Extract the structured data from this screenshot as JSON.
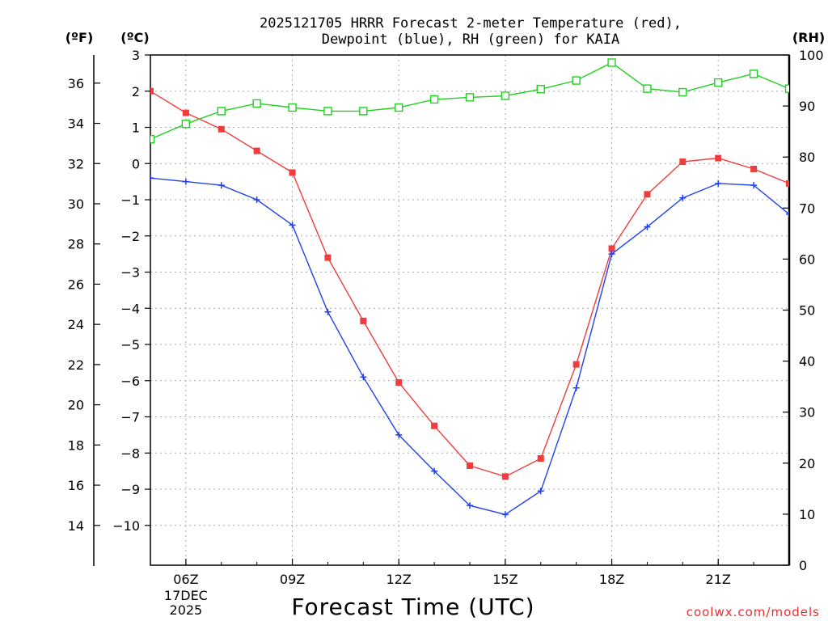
{
  "chart_data": {
    "type": "line",
    "title_line1": "2025121705 HRRR Forecast 2-meter Temperature (red),",
    "title_line2": "Dewpoint (blue), RH (green) for KAIA",
    "xlabel": "Forecast Time (UTC)",
    "credit": "coolwx.com/models",
    "x_hours": [
      5,
      6,
      7,
      8,
      9,
      10,
      11,
      12,
      13,
      14,
      15,
      16,
      17,
      18,
      19,
      20,
      21,
      22,
      23
    ],
    "x_ticks": [
      {
        "hour": 6,
        "label": "06Z",
        "date_line1": "17DEC",
        "date_line2": "2025"
      },
      {
        "hour": 9,
        "label": "09Z"
      },
      {
        "hour": 12,
        "label": "12Z"
      },
      {
        "hour": 15,
        "label": "15Z"
      },
      {
        "hour": 18,
        "label": "18Z"
      },
      {
        "hour": 21,
        "label": "21Z"
      }
    ],
    "xlim": [
      5,
      23
    ],
    "celsius_axis": {
      "label": "(ºC)",
      "ylim": [
        -11.1,
        3
      ],
      "ticks": [
        3,
        2,
        1,
        0,
        -1,
        -2,
        -3,
        -4,
        -5,
        -6,
        -7,
        -8,
        -9,
        -10
      ],
      "tick_labels": [
        "3",
        "2",
        "1",
        "0",
        "−1",
        "−2",
        "−3",
        "−4",
        "−5",
        "−6",
        "−7",
        "−8",
        "−9",
        "−10"
      ]
    },
    "fahrenheit_axis": {
      "label": "(ºF)",
      "ticks": [
        36,
        34,
        32,
        30,
        28,
        26,
        24,
        22,
        20,
        18,
        16,
        14
      ],
      "tick_labels": [
        "36",
        "34",
        "32",
        "30",
        "28",
        "26",
        "24",
        "22",
        "20",
        "18",
        "16",
        "14"
      ]
    },
    "rh_axis": {
      "label": "(RH)",
      "ylim": [
        0,
        100
      ],
      "ticks": [
        100,
        90,
        80,
        70,
        60,
        50,
        40,
        30,
        20,
        10,
        0
      ],
      "tick_labels": [
        "100",
        "90",
        "80",
        "70",
        "60",
        "50",
        "40",
        "30",
        "20",
        "10",
        "0"
      ]
    },
    "series": [
      {
        "name": "Temperature",
        "axis": "celsius",
        "color": "#f03c3c",
        "marker": "filled-square",
        "values": [
          2.0,
          1.4,
          0.95,
          0.35,
          -0.25,
          -2.6,
          -4.35,
          -6.05,
          -7.25,
          -8.35,
          -8.65,
          -8.15,
          -5.55,
          -2.35,
          -0.85,
          0.05,
          0.15,
          -0.15,
          -0.55
        ]
      },
      {
        "name": "Dewpoint",
        "axis": "celsius",
        "color": "#2040f0",
        "marker": "plus",
        "values": [
          -0.4,
          -0.5,
          -0.6,
          -1.0,
          -1.7,
          -4.1,
          -5.9,
          -7.5,
          -8.5,
          -9.45,
          -9.7,
          -9.05,
          -6.2,
          -2.5,
          -1.75,
          -0.95,
          -0.55,
          -0.6,
          -1.4
        ]
      },
      {
        "name": "RH",
        "axis": "rh",
        "color": "#20d020",
        "marker": "open-square",
        "values": [
          83.5,
          86.5,
          89.0,
          90.5,
          89.7,
          89.0,
          89.0,
          89.7,
          91.3,
          91.7,
          92.0,
          93.3,
          95.0,
          98.5,
          93.4,
          92.7,
          94.6,
          96.3,
          93.4
        ]
      }
    ]
  }
}
